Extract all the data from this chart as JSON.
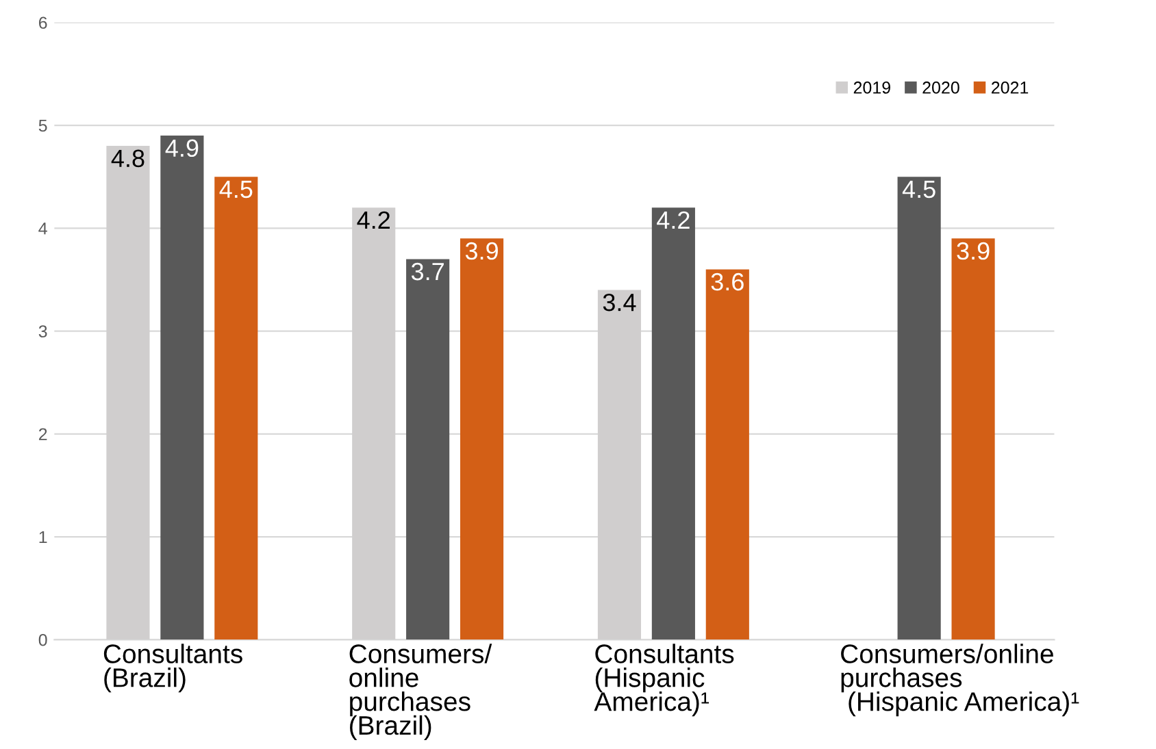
{
  "chart_data": {
    "type": "bar",
    "categories": [
      "Consultants\n(Brazil)",
      "Consumers/\nonline\npurchases\n(Brazil)",
      "Consultants\n(Hispanic\nAmerica)¹",
      "Consumers/online\npurchases\n (Hispanic America)¹"
    ],
    "series": [
      {
        "name": "2019",
        "color": "#d0cece",
        "values": [
          4.8,
          4.2,
          3.4,
          null
        ]
      },
      {
        "name": "2020",
        "color": "#595959",
        "values": [
          4.9,
          3.7,
          4.2,
          4.5
        ]
      },
      {
        "name": "2021",
        "color": "#d35f16",
        "values": [
          4.5,
          3.9,
          3.6,
          3.9
        ]
      }
    ],
    "ylim": [
      0,
      6
    ],
    "yticks": [
      0,
      1,
      2,
      3,
      4,
      5,
      6
    ],
    "grid": "y",
    "legend": "top right",
    "data_labels": true
  }
}
